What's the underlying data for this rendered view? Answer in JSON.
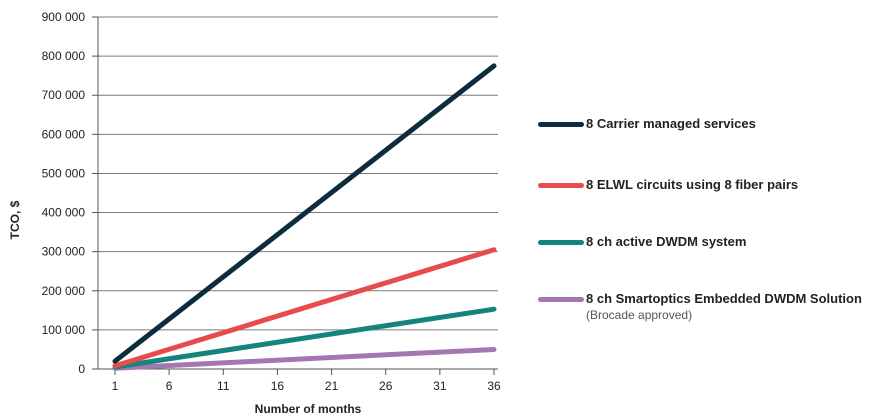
{
  "chart_data": {
    "type": "line",
    "xlabel": "Number of months",
    "ylabel": "TCO, $",
    "x_ticks": [
      "1",
      "6",
      "11",
      "16",
      "21",
      "26",
      "31",
      "36"
    ],
    "x_tick_values": [
      1,
      6,
      11,
      16,
      21,
      26,
      31,
      36
    ],
    "y_ticks": [
      "0",
      "100 000",
      "200 000",
      "300 000",
      "400 000",
      "500 000",
      "600 000",
      "700 000",
      "800 000",
      "900 000"
    ],
    "y_tick_values": [
      0,
      100000,
      200000,
      300000,
      400000,
      500000,
      600000,
      700000,
      800000,
      900000
    ],
    "xlim": [
      1,
      36
    ],
    "ylim": [
      0,
      900000
    ],
    "grid": "horizontal",
    "legend_position": "right",
    "series": [
      {
        "name": "8 Carrier managed services",
        "subtitle": "",
        "color": "#0d2c3d",
        "x": [
          1,
          36
        ],
        "values": [
          20000,
          775000
        ]
      },
      {
        "name": "8 ELWL circuits using 8 fiber pairs",
        "subtitle": "",
        "color": "#e84b4b",
        "x": [
          1,
          36
        ],
        "values": [
          8000,
          305000
        ]
      },
      {
        "name": "8 ch active DWDM system",
        "subtitle": "",
        "color": "#15847c",
        "x": [
          1,
          36
        ],
        "values": [
          5000,
          153000
        ]
      },
      {
        "name": "8 ch Smartoptics Embedded DWDM Solution",
        "subtitle": "(Brocade approved)",
        "color": "#a477b3",
        "x": [
          1,
          36
        ],
        "values": [
          2000,
          50000
        ]
      }
    ]
  }
}
